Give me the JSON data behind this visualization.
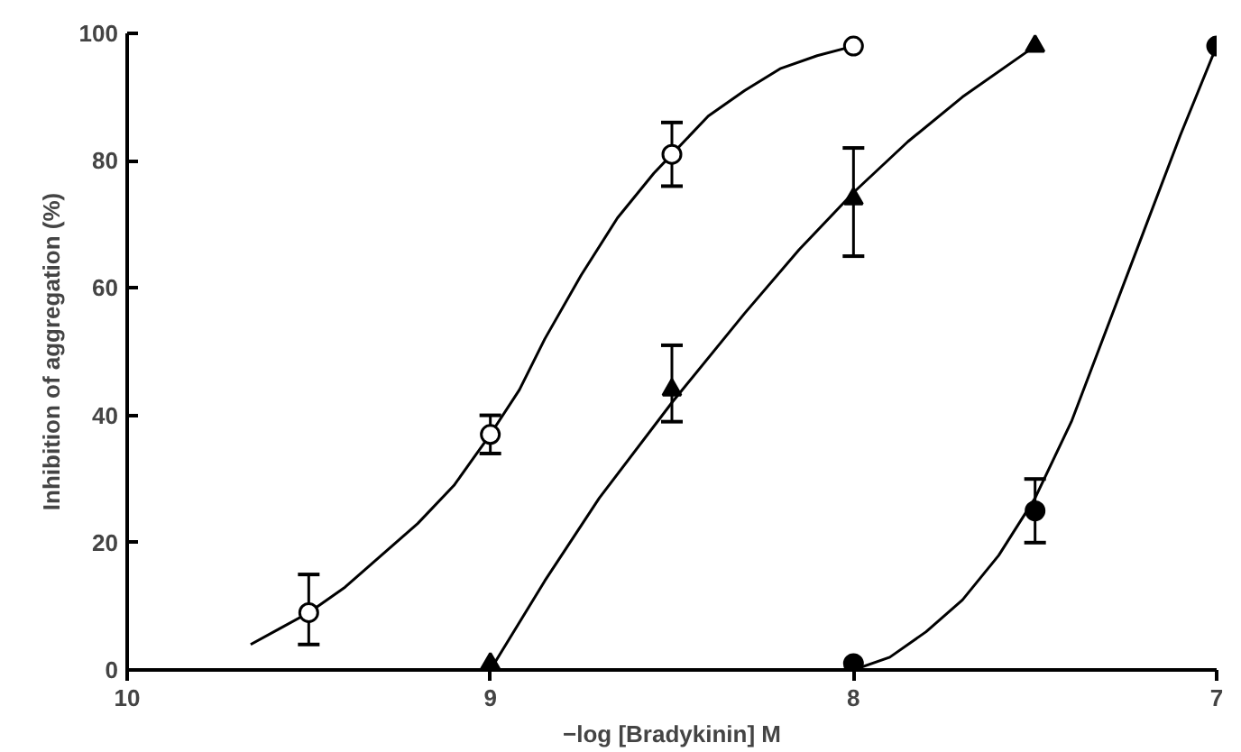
{
  "chart_data": {
    "type": "scatter",
    "xlabel": "−log [Bradykinin] M",
    "ylabel": "Inhibition of aggregation (%)",
    "xlim": [
      10,
      7
    ],
    "xticks": [
      10,
      9,
      8,
      7
    ],
    "ylim": [
      0,
      100
    ],
    "yticks": [
      0,
      20,
      40,
      60,
      80,
      100
    ],
    "grid": false,
    "series": [
      {
        "type": "line",
        "color": "#000000",
        "marker": "none",
        "x": [
          9.66,
          9.58,
          9.5,
          9.4,
          9.3,
          9.2,
          9.1,
          9.0,
          8.92,
          8.85,
          8.75,
          8.65,
          8.55,
          8.5,
          8.4,
          8.3,
          8.2,
          8.1,
          8.0
        ],
        "values": [
          4,
          6.5,
          9,
          13,
          18,
          23,
          29,
          37,
          44,
          52,
          62,
          71,
          78,
          81,
          87,
          91,
          94.5,
          96.5,
          98
        ]
      },
      {
        "type": "line",
        "color": "#000000",
        "marker": "none",
        "x": [
          9.0,
          8.85,
          8.7,
          8.5,
          8.3,
          8.15,
          8.0,
          7.85,
          7.7,
          7.5
        ],
        "values": [
          0,
          14,
          27,
          42,
          56,
          66,
          75,
          83,
          90,
          98
        ]
      },
      {
        "type": "line",
        "color": "#000000",
        "marker": "none",
        "x": [
          8.0,
          7.9,
          7.8,
          7.7,
          7.6,
          7.5,
          7.4,
          7.3,
          7.2,
          7.1,
          7.0
        ],
        "values": [
          0,
          2,
          6,
          11,
          18,
          27,
          39,
          54,
          69,
          84,
          98
        ]
      },
      {
        "color": "#ffffff",
        "marker": "circle",
        "x": [
          9.5,
          9.0,
          8.5,
          8.0
        ],
        "values": [
          9,
          37,
          81,
          98
        ],
        "errors": [
          [
            4,
            15
          ],
          [
            34,
            40
          ],
          [
            76,
            86
          ],
          null
        ]
      },
      {
        "color": "#000000",
        "marker": "triangle",
        "x": [
          9.0,
          8.5,
          8.0,
          7.5
        ],
        "values": [
          1,
          44,
          74,
          98
        ],
        "errors": [
          null,
          [
            39,
            51
          ],
          [
            65,
            82
          ],
          null
        ]
      },
      {
        "color": "#000000",
        "marker": "circle",
        "x": [
          8.0,
          7.5,
          7.0
        ],
        "values": [
          1,
          25,
          98
        ],
        "errors": [
          null,
          [
            20,
            30
          ],
          null
        ]
      }
    ]
  }
}
